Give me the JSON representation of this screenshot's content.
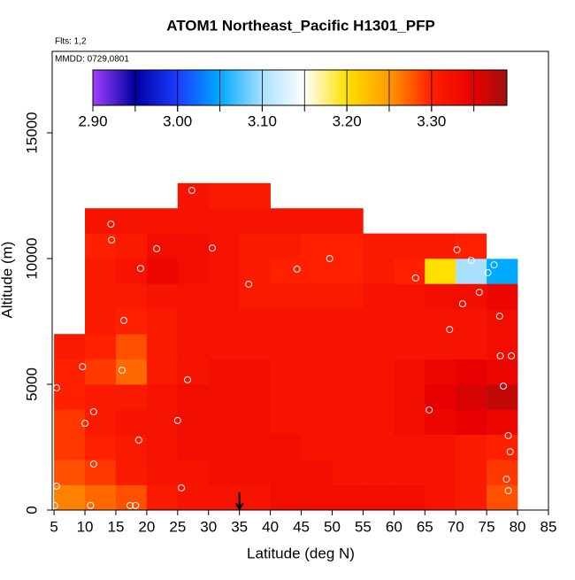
{
  "chart_data": {
    "type": "heatmap",
    "title": "ATOM1 Northeast_Pacific H1301_PFP",
    "flights": "Flts: 1,2",
    "dates": "MMDD: 0729,0801",
    "x_label": "Latitude (deg N)",
    "y_label": "Altitude (m)",
    "xlim": [
      4.7,
      85
    ],
    "ylim": [
      0,
      18240
    ],
    "xticks": [
      5,
      10,
      15,
      20,
      25,
      30,
      35,
      40,
      45,
      50,
      55,
      60,
      65,
      70,
      75,
      80,
      85
    ],
    "yticks": [
      0,
      5000,
      10000,
      15000
    ],
    "x_edges": [
      5,
      10,
      15,
      20,
      25,
      30,
      35,
      40,
      45,
      50,
      55,
      60,
      65,
      70,
      75,
      80
    ],
    "y_edges": [
      0,
      1000,
      2000,
      3000,
      4000,
      5000,
      6000,
      7000,
      8000,
      9000,
      10000,
      11000,
      12000,
      13000
    ],
    "values": [
      [
        3.26,
        3.27,
        3.28,
        3.31,
        3.32,
        3.32,
        3.32,
        3.33,
        3.33,
        3.33,
        3.33,
        3.33,
        3.32,
        3.31,
        3.28
      ],
      [
        3.28,
        3.29,
        3.31,
        3.32,
        3.32,
        3.33,
        3.33,
        3.33,
        3.33,
        3.32,
        3.32,
        3.32,
        3.32,
        3.31,
        3.29
      ],
      [
        3.29,
        3.3,
        3.31,
        3.32,
        3.33,
        3.33,
        3.33,
        3.33,
        3.32,
        3.32,
        3.32,
        3.32,
        3.32,
        3.31,
        3.3
      ],
      [
        3.29,
        3.31,
        3.32,
        3.32,
        3.33,
        3.33,
        3.33,
        3.32,
        3.32,
        3.32,
        3.32,
        3.33,
        3.34,
        3.35,
        3.34
      ],
      [
        3.3,
        3.31,
        3.31,
        3.32,
        3.33,
        3.33,
        3.33,
        3.32,
        3.32,
        3.32,
        3.32,
        3.33,
        3.35,
        3.36,
        3.37
      ],
      [
        3.3,
        3.29,
        3.27,
        3.31,
        3.32,
        3.33,
        3.33,
        3.32,
        3.32,
        3.32,
        3.32,
        3.33,
        3.34,
        3.35,
        3.34
      ],
      [
        3.31,
        3.3,
        3.28,
        3.31,
        3.32,
        3.32,
        3.32,
        3.32,
        3.32,
        3.32,
        3.32,
        3.32,
        3.32,
        3.32,
        3.33
      ],
      [
        null,
        3.31,
        3.3,
        3.31,
        3.32,
        3.32,
        3.32,
        3.32,
        3.32,
        3.32,
        3.32,
        3.32,
        3.32,
        3.32,
        3.33
      ],
      [
        null,
        3.31,
        3.31,
        3.32,
        3.32,
        3.32,
        3.31,
        3.31,
        3.31,
        3.31,
        3.32,
        3.32,
        3.33,
        3.33,
        3.34
      ],
      [
        null,
        3.31,
        3.32,
        3.34,
        3.33,
        3.32,
        3.31,
        3.3,
        3.3,
        3.3,
        3.31,
        3.3,
        3.2,
        3.1,
        3.05
      ],
      [
        null,
        3.3,
        3.31,
        3.33,
        3.33,
        3.32,
        3.31,
        3.31,
        3.3,
        3.3,
        3.31,
        3.31,
        3.31,
        3.3,
        3.15
      ],
      [
        null,
        3.32,
        3.32,
        3.32,
        3.32,
        3.32,
        3.32,
        3.32,
        3.32,
        3.32,
        null,
        null,
        null,
        null,
        null
      ],
      [
        null,
        null,
        null,
        null,
        3.32,
        3.31,
        3.31,
        null,
        null,
        null,
        null,
        null,
        null,
        null,
        null
      ]
    ],
    "colorscale": [
      [
        2.9,
        "#a040ff"
      ],
      [
        2.95,
        "#0000a0"
      ],
      [
        3.0,
        "#1a3cff"
      ],
      [
        3.05,
        "#00aaff"
      ],
      [
        3.1,
        "#a8e0ff"
      ],
      [
        3.15,
        "#ffffff"
      ],
      [
        3.2,
        "#ffe000"
      ],
      [
        3.25,
        "#ff9900"
      ],
      [
        3.3,
        "#ff2000"
      ],
      [
        3.35,
        "#e80000"
      ],
      [
        3.389,
        "#a01010"
      ]
    ],
    "colorbar_ticks": [
      {
        "value": 2.9,
        "label": "2.90"
      },
      {
        "value": 3.0,
        "label": "3.00"
      },
      {
        "value": 3.1,
        "label": "3.10"
      },
      {
        "value": 3.2,
        "label": "3.20"
      },
      {
        "value": 3.3,
        "label": "3.30"
      }
    ],
    "points": {
      "x": [
        5.4,
        5.4,
        5.1,
        8,
        9.6,
        10.0,
        11.4,
        10.9,
        11.4,
        14.2,
        14.3,
        16.3,
        16.0,
        17.3,
        18.2,
        18.7,
        19.0,
        21.6,
        25.0,
        25.6,
        26.6,
        27.3,
        30.6,
        36.5,
        44.3,
        49.6,
        63.5,
        65.7,
        67.5,
        69.0,
        70.2,
        71.1,
        72.5,
        73.8,
        75.2,
        76.2,
        77.1,
        77.2,
        77.7,
        79.0,
        78.5,
        78.8,
        78.2,
        78.5
      ],
      "y": [
        4860,
        950,
        180,
        11370,
        5700,
        3450,
        3910,
        180,
        1830,
        11370,
        10740,
        7540,
        5560,
        180,
        180,
        2780,
        9610,
        10390,
        3560,
        880,
        5180,
        12710,
        10420,
        8980,
        9580,
        10000,
        9230,
        3980,
        11410,
        7180,
        10350,
        8200,
        9930,
        8660,
        9440,
        9750,
        7710,
        6130,
        4930,
        6130,
        2960,
        2320,
        1230,
        770
      ]
    },
    "arrow_x": 35
  }
}
